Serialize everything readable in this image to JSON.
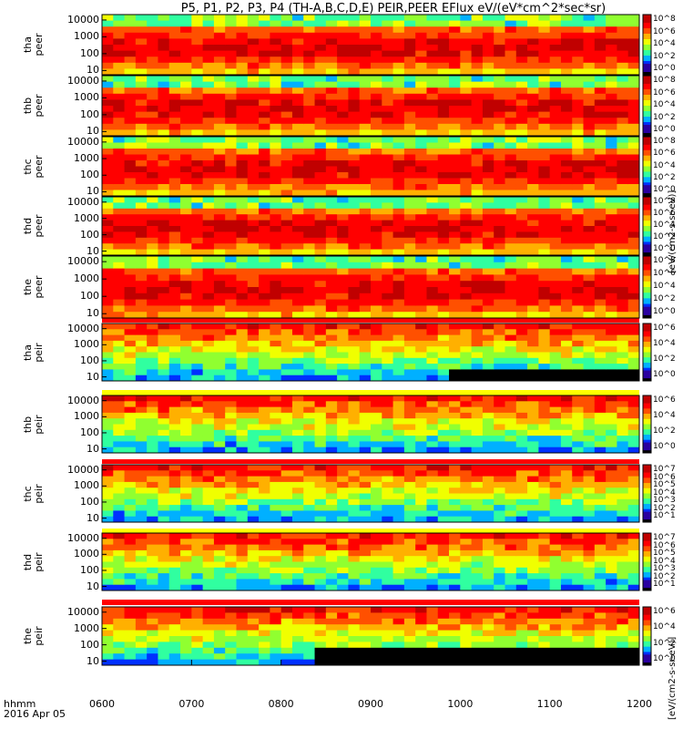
{
  "title": "P5, P1, P2, P3, P4 (TH-A,B,C,D,E) PEIR,PEER EFlux eV/(eV*cm^2*sec*sr)",
  "time_label": "hhmm",
  "date_label": "2016 Apr 05",
  "cb_unit_main": "[eV/(cm2-s-sr-eV)]",
  "cb_unit_ion": "[eV/(cm2-s-sr-eV)]",
  "chart_data": {
    "type": "heatmap",
    "x_ticks": [
      "0600",
      "0700",
      "0800",
      "0900",
      "1000",
      "1100",
      "1200"
    ],
    "x_range_hours": [
      6,
      12
    ],
    "colormap": [
      "#000000",
      "#2a00a0",
      "#0030ff",
      "#00b0ff",
      "#30ffa0",
      "#90ff30",
      "#f0ff00",
      "#ffb000",
      "#ff5000",
      "#ff0000",
      "#c00000"
    ],
    "panels": [
      {
        "probe": "tha",
        "species": "peer",
        "y_ticks": [
          "10000",
          "1000",
          "100",
          "10"
        ],
        "log_y": true,
        "cb_ticks": [
          "10^8",
          "10^6",
          "10^4",
          "10^2",
          "10^0"
        ]
      },
      {
        "probe": "thb",
        "species": "peer",
        "y_ticks": [
          "10000",
          "1000",
          "100",
          "10"
        ],
        "log_y": true,
        "cb_ticks": [
          "10^8",
          "10^6",
          "10^4",
          "10^2",
          "10^0"
        ]
      },
      {
        "probe": "thc",
        "species": "peer",
        "y_ticks": [
          "10000",
          "1000",
          "100",
          "10"
        ],
        "log_y": true,
        "cb_ticks": [
          "10^8",
          "10^6",
          "10^4",
          "10^2",
          "10^0"
        ]
      },
      {
        "probe": "thd",
        "species": "peer",
        "y_ticks": [
          "10000",
          "1000",
          "100",
          "10"
        ],
        "log_y": true,
        "cb_ticks": [
          "10^8",
          "10^6",
          "10^4",
          "10^2",
          "10^0"
        ]
      },
      {
        "probe": "the",
        "species": "peer",
        "y_ticks": [
          "10000",
          "1000",
          "100",
          "10"
        ],
        "log_y": true,
        "cb_ticks": [
          "10^8",
          "10^6",
          "10^4",
          "10^2",
          "10^0"
        ]
      },
      {
        "probe": "tha",
        "species": "peir",
        "y_ticks": [
          "10000",
          "1000",
          "100",
          "10"
        ],
        "log_y": true,
        "cb_ticks": [
          "10^6",
          "10^4",
          "10^2",
          "10^0"
        ]
      },
      {
        "probe": "thb",
        "species": "peir",
        "y_ticks": [
          "10000",
          "1000",
          "100",
          "10"
        ],
        "log_y": true,
        "cb_ticks": [
          "10^6",
          "10^4",
          "10^2",
          "10^0"
        ]
      },
      {
        "probe": "thc",
        "species": "peir",
        "y_ticks": [
          "10000",
          "1000",
          "100",
          "10"
        ],
        "log_y": true,
        "cb_ticks": [
          "10^7",
          "10^6",
          "10^5",
          "10^4",
          "10^3",
          "10^2",
          "10^1"
        ]
      },
      {
        "probe": "thd",
        "species": "peir",
        "y_ticks": [
          "10000",
          "1000",
          "100",
          "10"
        ],
        "log_y": true,
        "cb_ticks": [
          "10^7",
          "10^6",
          "10^5",
          "10^4",
          "10^3",
          "10^2",
          "10^1"
        ]
      },
      {
        "probe": "the",
        "species": "peir",
        "y_ticks": [
          "10000",
          "1000",
          "100",
          "10"
        ],
        "log_y": true,
        "cb_ticks": [
          "10^6",
          "10^4",
          "10^2",
          "10^0"
        ]
      }
    ]
  }
}
